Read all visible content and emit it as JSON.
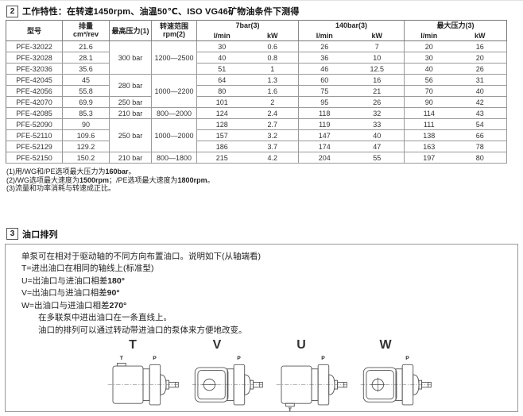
{
  "section2": {
    "number": "2",
    "title": "工作特性：在转速1450rpm、油温50℃、ISO VG46矿物油条件下测得"
  },
  "table": {
    "col_headers": {
      "model": "型号",
      "displacement": [
        "排量",
        "cm³/rev"
      ],
      "max_pressure": "最高压力(1)",
      "speed_range": [
        "转速范围",
        "rpm(2)"
      ],
      "groups": [
        {
          "label": "7bar(3)"
        },
        {
          "label": "140bar(3)"
        },
        {
          "label": "最大压力(3)"
        }
      ],
      "sub_flow": "l/min",
      "sub_power": "kW"
    },
    "rows": [
      {
        "model": "PFE-32022",
        "displacement": "21.6",
        "pressure": {
          "text": "300 bar",
          "span": 3
        },
        "speed": {
          "text": "1200—2500",
          "span": 3
        },
        "values": [
          "30",
          "0.6",
          "26",
          "7",
          "20",
          "16"
        ]
      },
      {
        "model": "PFE-32028",
        "displacement": "28.1",
        "values": [
          "40",
          "0.8",
          "36",
          "10",
          "30",
          "20"
        ]
      },
      {
        "model": "PFE-32036",
        "displacement": "35.6",
        "values": [
          "51",
          "1",
          "46",
          "12.5",
          "40",
          "26"
        ]
      },
      {
        "model": "PFE-42045",
        "displacement": "45",
        "pressure": {
          "text": "280 bar",
          "span": 2
        },
        "speed": {
          "text": "1000—2200",
          "span": 3
        },
        "values": [
          "64",
          "1.3",
          "60",
          "16",
          "56",
          "31"
        ]
      },
      {
        "model": "PFE-42056",
        "displacement": "55.8",
        "values": [
          "80",
          "1.6",
          "75",
          "21",
          "70",
          "40"
        ]
      },
      {
        "model": "PFE-42070",
        "displacement": "69.9",
        "pressure": {
          "text": "250 bar",
          "span": 1
        },
        "values": [
          "101",
          "2",
          "95",
          "26",
          "90",
          "42"
        ]
      },
      {
        "model": "PFE-42085",
        "displacement": "85.3",
        "pressure": {
          "text": "210 bar",
          "span": 1
        },
        "speed": {
          "text": "800—2000",
          "span": 1
        },
        "values": [
          "124",
          "2.4",
          "118",
          "32",
          "114",
          "43"
        ]
      },
      {
        "model": "PFE-52090",
        "displacement": "90",
        "pressure": {
          "text": "250 bar",
          "span": 3
        },
        "speed": {
          "text": "1000—2000",
          "span": 3
        },
        "values": [
          "128",
          "2.7",
          "119",
          "33",
          "111",
          "54"
        ]
      },
      {
        "model": "PFE-52110",
        "displacement": "109.6",
        "values": [
          "157",
          "3.2",
          "147",
          "40",
          "138",
          "66"
        ]
      },
      {
        "model": "PFE-52129",
        "displacement": "129.2",
        "values": [
          "186",
          "3.7",
          "174",
          "47",
          "163",
          "78"
        ]
      },
      {
        "model": "PFE-52150",
        "displacement": "150.2",
        "pressure": {
          "text": "210 bar",
          "span": 1
        },
        "speed": {
          "text": "800—1800",
          "span": 1
        },
        "values": [
          "215",
          "4.2",
          "204",
          "55",
          "197",
          "80"
        ]
      }
    ]
  },
  "footnotes": [
    {
      "parts": [
        {
          "t": "(1)用/WG和/PE选项最大压力为"
        },
        {
          "t": "160bar",
          "b": 1
        },
        {
          "t": "。"
        }
      ]
    },
    {
      "parts": [
        {
          "t": "(2)/WG选项最大速度为"
        },
        {
          "t": "1500rpm",
          "b": 1
        },
        {
          "t": "；/PE选项最大速度为"
        },
        {
          "t": "1800rpm",
          "b": 1
        },
        {
          "t": "。"
        }
      ]
    },
    {
      "parts": [
        {
          "t": "(3)流量和功率消耗与转速成正比。"
        }
      ]
    }
  ],
  "section3": {
    "number": "3",
    "title": "油口排列",
    "lines": [
      {
        "parts": [
          {
            "t": "单泵可在相对于驱动轴的不同方向布置油口。说明如下(从轴端看)"
          }
        ]
      },
      {
        "parts": [
          {
            "t": "T=进出油口在相同的轴线上(标准型)"
          }
        ]
      },
      {
        "parts": [
          {
            "t": "U=出油口与进油口相差"
          },
          {
            "t": "180°",
            "b": 1
          }
        ]
      },
      {
        "parts": [
          {
            "t": "V=出油口与进油口相差"
          },
          {
            "t": "90°",
            "b": 1
          }
        ]
      },
      {
        "parts": [
          {
            "t": "W=出油口与进油口相差"
          },
          {
            "t": "270°",
            "b": 1
          }
        ]
      },
      {
        "indent": 1,
        "parts": [
          {
            "t": "在多联泵中进出油口在一条直线上。"
          }
        ]
      },
      {
        "indent": 1,
        "parts": [
          {
            "t": "油口的排列可以通过转动带进油口的泵体来方便地改变。"
          }
        ]
      }
    ],
    "diagrams": [
      {
        "label": "T",
        "variant": "side-top",
        "ports": {
          "top": "P",
          "aux": "T"
        }
      },
      {
        "label": "V",
        "variant": "face",
        "ports": {
          "top": "P"
        }
      },
      {
        "label": "U",
        "variant": "side-bottom",
        "ports": {
          "top": "P",
          "aux": "T"
        }
      },
      {
        "label": "W",
        "variant": "face-cross",
        "ports": {
          "top": "P"
        }
      }
    ]
  }
}
